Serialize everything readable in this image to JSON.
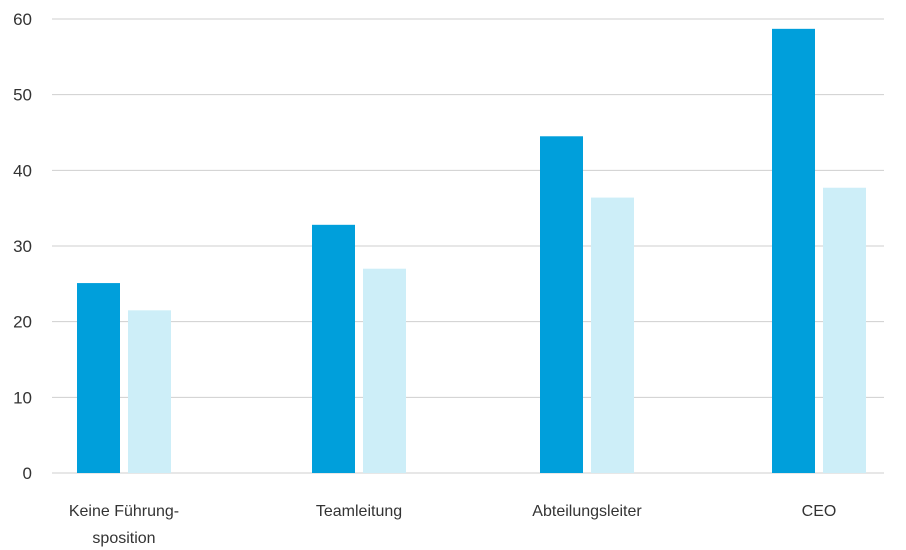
{
  "chart_data": {
    "type": "bar",
    "categories": [
      [
        "Keine Führung-",
        "sposition"
      ],
      [
        "Teamleitung"
      ],
      [
        "Abteilungsleiter"
      ],
      [
        "CEO"
      ]
    ],
    "series": [
      {
        "values": [
          25.1,
          32.8,
          44.5,
          58.7
        ],
        "color": "#009fdb"
      },
      {
        "values": [
          21.5,
          27.0,
          36.4,
          37.7
        ],
        "color": "#cdeef8"
      }
    ],
    "yticks": [
      "0",
      "10",
      "20",
      "30",
      "40",
      "50",
      "60"
    ],
    "ylim": [
      0,
      60
    ],
    "grid": true,
    "legend": "none"
  }
}
